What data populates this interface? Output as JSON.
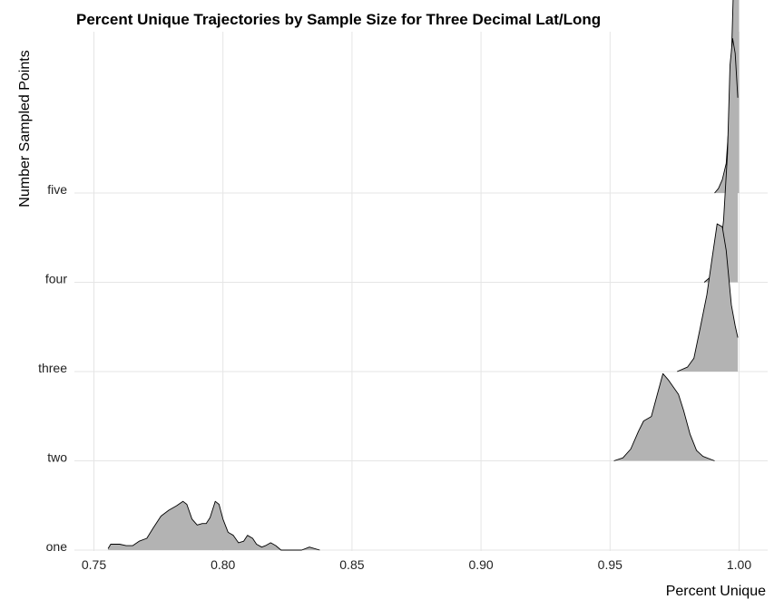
{
  "chart_data": {
    "type": "ridgeline",
    "title": "Percent Unique Trajectories by Sample Size for Three Decimal Lat/Long",
    "xlabel": "Percent Unique",
    "ylabel": "Number Sampled Points",
    "xlim": [
      0.745,
      1.01
    ],
    "x_ticks": [
      0.75,
      0.8,
      0.85,
      0.9,
      0.95,
      1.0
    ],
    "x_tick_labels": [
      "0.75",
      "0.80",
      "0.85",
      "0.90",
      "0.95",
      "1.00"
    ],
    "categories": [
      "one",
      "two",
      "three",
      "four",
      "five"
    ],
    "grid": true,
    "legend": "none",
    "fill_color": "#b3b3b3",
    "line_color": "#000000",
    "series": [
      {
        "name": "one",
        "density": [
          [
            0.7555,
            0.01
          ],
          [
            0.7565,
            0.04
          ],
          [
            0.76,
            0.04
          ],
          [
            0.7625,
            0.03
          ],
          [
            0.765,
            0.03
          ],
          [
            0.7675,
            0.06
          ],
          [
            0.7705,
            0.08
          ],
          [
            0.773,
            0.15
          ],
          [
            0.776,
            0.23
          ],
          [
            0.779,
            0.27
          ],
          [
            0.782,
            0.3
          ],
          [
            0.7845,
            0.33
          ],
          [
            0.786,
            0.31
          ],
          [
            0.788,
            0.21
          ],
          [
            0.79,
            0.17
          ],
          [
            0.792,
            0.18
          ],
          [
            0.7935,
            0.18
          ],
          [
            0.795,
            0.22
          ],
          [
            0.797,
            0.33
          ],
          [
            0.7985,
            0.31
          ],
          [
            0.8,
            0.21
          ],
          [
            0.802,
            0.12
          ],
          [
            0.804,
            0.1
          ],
          [
            0.806,
            0.05
          ],
          [
            0.808,
            0.06
          ],
          [
            0.8095,
            0.1
          ],
          [
            0.8115,
            0.08
          ],
          [
            0.813,
            0.04
          ],
          [
            0.815,
            0.02
          ],
          [
            0.8165,
            0.03
          ],
          [
            0.8185,
            0.05
          ],
          [
            0.8205,
            0.03
          ],
          [
            0.8225,
            0.0
          ],
          [
            0.8305,
            0.0
          ],
          [
            0.8335,
            0.02
          ],
          [
            0.8375,
            0.0
          ]
        ]
      },
      {
        "name": "two",
        "density": [
          [
            0.9515,
            0.0
          ],
          [
            0.955,
            0.02
          ],
          [
            0.958,
            0.08
          ],
          [
            0.961,
            0.2
          ],
          [
            0.963,
            0.27
          ],
          [
            0.966,
            0.3
          ],
          [
            0.968,
            0.43
          ],
          [
            0.9705,
            0.59
          ],
          [
            0.9725,
            0.55
          ],
          [
            0.9745,
            0.5
          ],
          [
            0.9765,
            0.45
          ],
          [
            0.9785,
            0.34
          ],
          [
            0.981,
            0.18
          ],
          [
            0.9835,
            0.07
          ],
          [
            0.986,
            0.03
          ],
          [
            0.9905,
            0.0
          ]
        ]
      },
      {
        "name": "three",
        "density": [
          [
            0.976,
            0.0
          ],
          [
            0.98,
            0.03
          ],
          [
            0.9825,
            0.09
          ],
          [
            0.985,
            0.3
          ],
          [
            0.9875,
            0.52
          ],
          [
            0.9895,
            0.76
          ],
          [
            0.9915,
            1.0
          ],
          [
            0.9935,
            0.98
          ],
          [
            0.995,
            0.82
          ],
          [
            0.997,
            0.45
          ],
          [
            0.9985,
            0.31
          ],
          [
            0.9995,
            0.23
          ]
        ]
      },
      {
        "name": "four",
        "density": [
          [
            0.9865,
            0.0
          ],
          [
            0.9885,
            0.03
          ],
          [
            0.99,
            0.07
          ],
          [
            0.9925,
            0.19
          ],
          [
            0.994,
            0.42
          ],
          [
            0.9955,
            0.87
          ],
          [
            0.9965,
            1.47
          ],
          [
            0.9975,
            1.65
          ],
          [
            0.9985,
            1.55
          ],
          [
            0.9995,
            1.25
          ]
        ]
      },
      {
        "name": "five",
        "density": [
          [
            0.9905,
            0.0
          ],
          [
            0.992,
            0.03
          ],
          [
            0.9935,
            0.09
          ],
          [
            0.995,
            0.2
          ],
          [
            0.996,
            0.45
          ],
          [
            0.997,
            0.9
          ],
          [
            0.998,
            1.5
          ],
          [
            0.9988,
            1.75
          ],
          [
            0.9995,
            1.72
          ],
          [
            1.0,
            1.66
          ]
        ]
      }
    ]
  }
}
